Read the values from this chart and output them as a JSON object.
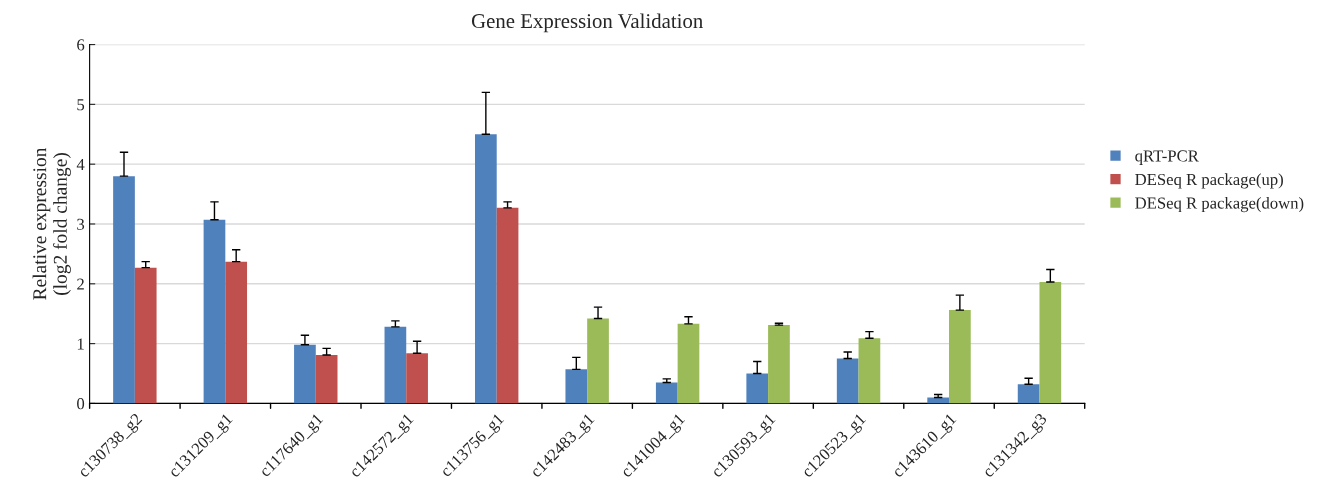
{
  "chart_data": {
    "type": "bar",
    "title": "Gene Expression Validation",
    "ylabel": "Relative expression\n(log2 fold change)",
    "categories": [
      "c130738_g2",
      "c131209_g1",
      "c117640_g1",
      "c142572_g1",
      "c113756_g1",
      "c142483_g1",
      "c141004_g1",
      "c130593_g1",
      "c120523_g1",
      "c143610_g1",
      "c131342_g3"
    ],
    "series": [
      {
        "name": "qRT-PCR",
        "color": "#4f81bd",
        "values": [
          3.8,
          3.07,
          0.98,
          1.28,
          4.5,
          0.57,
          0.35,
          0.5,
          0.75,
          0.1,
          0.32
        ],
        "errors": [
          [
            3.8,
            4.2
          ],
          [
            3.07,
            3.37
          ],
          [
            0.98,
            1.14
          ],
          [
            1.28,
            1.38
          ],
          [
            4.5,
            5.2
          ],
          [
            0.57,
            0.77
          ],
          [
            0.35,
            0.41
          ],
          [
            0.5,
            0.7
          ],
          [
            0.75,
            0.86
          ],
          [
            0.1,
            0.15
          ],
          [
            0.32,
            0.42
          ]
        ]
      },
      {
        "name": "DESeq R package(up)",
        "color": "#c0504d",
        "values": [
          2.27,
          2.37,
          0.81,
          0.84,
          3.27,
          null,
          null,
          null,
          null,
          null,
          null
        ],
        "errors": [
          [
            2.27,
            2.37
          ],
          [
            2.37,
            2.57
          ],
          [
            0.81,
            0.92
          ],
          [
            0.84,
            1.04
          ],
          [
            3.27,
            3.37
          ],
          null,
          null,
          null,
          null,
          null,
          null
        ]
      },
      {
        "name": "DESeq R package(down)",
        "color": "#9bbb59",
        "values": [
          null,
          null,
          null,
          null,
          null,
          1.42,
          1.33,
          1.31,
          1.09,
          1.56,
          2.03
        ],
        "errors": [
          null,
          null,
          null,
          null,
          null,
          [
            1.42,
            1.61
          ],
          [
            1.33,
            1.45
          ],
          [
            1.31,
            1.34
          ],
          [
            1.09,
            1.2
          ],
          [
            1.56,
            1.81
          ],
          [
            2.03,
            2.24
          ]
        ]
      }
    ],
    "ylim": [
      0,
      6
    ],
    "yticks": [
      0,
      1,
      2,
      3,
      4,
      5,
      6
    ],
    "grid": "y",
    "legend": "right"
  }
}
